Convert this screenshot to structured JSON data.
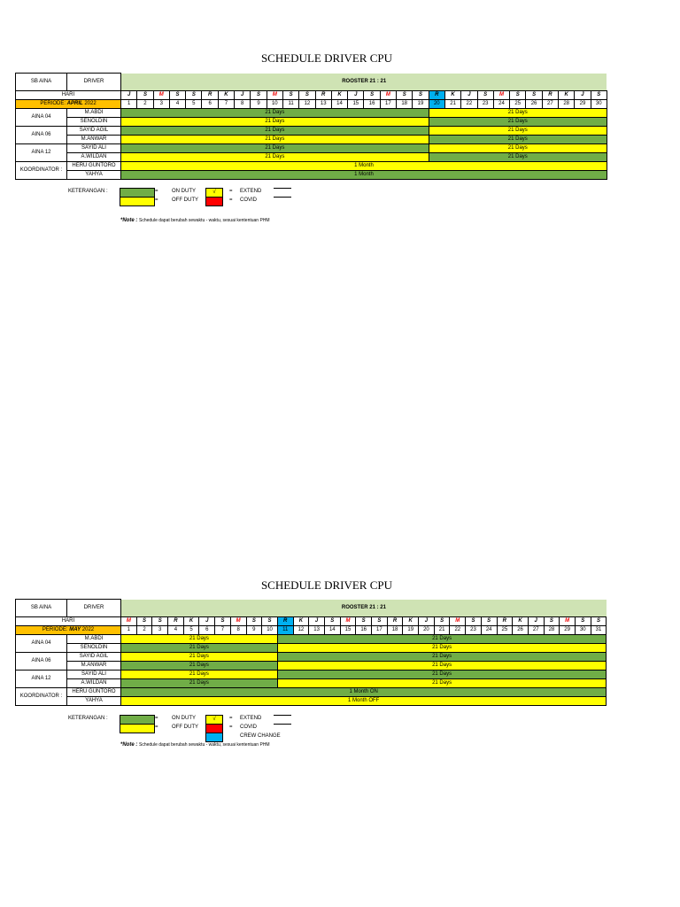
{
  "sheets": [
    {
      "title": "SCHEDULE DRIVER CPU",
      "header": {
        "sb": "SB AINA",
        "driver": "DRIVER",
        "rooster": "ROOSTER 21 : 21",
        "hari": "HARI"
      },
      "periode": {
        "prefix": "PERIODE: ",
        "month": "APRIL",
        "year": " 2022"
      },
      "days": [
        "J",
        "S",
        "M",
        "S",
        "S",
        "R",
        "K",
        "J",
        "S",
        "M",
        "S",
        "S",
        "R",
        "K",
        "J",
        "S",
        "M",
        "S",
        "S",
        "R",
        "K",
        "J",
        "S",
        "M",
        "S",
        "S",
        "R",
        "K",
        "J",
        "S"
      ],
      "crew_change_date": 20,
      "dates": [
        "1",
        "2",
        "3",
        "4",
        "5",
        "6",
        "7",
        "8",
        "9",
        "10",
        "11",
        "12",
        "13",
        "14",
        "15",
        "16",
        "17",
        "18",
        "19",
        "20",
        "21",
        "22",
        "23",
        "24",
        "25",
        "26",
        "27",
        "28",
        "29",
        "30"
      ],
      "groups": [
        {
          "label": "AINA 04",
          "rows": [
            {
              "name": "M.ABDI",
              "segments": [
                {
                  "span": 19,
                  "status": "on",
                  "text": "21 Days"
                },
                {
                  "span": 11,
                  "status": "off",
                  "text": "21 Days"
                }
              ]
            },
            {
              "name": "SENOLDIN",
              "segments": [
                {
                  "span": 19,
                  "status": "off",
                  "text": "21 Days"
                },
                {
                  "span": 11,
                  "status": "on",
                  "text": "21 Days"
                }
              ]
            }
          ]
        },
        {
          "label": "AINA 06",
          "rows": [
            {
              "name": "SAYID AGIL",
              "segments": [
                {
                  "span": 19,
                  "status": "on",
                  "text": "21 Days"
                },
                {
                  "span": 11,
                  "status": "off",
                  "text": "21 Days"
                }
              ]
            },
            {
              "name": "M.ANWAR",
              "segments": [
                {
                  "span": 19,
                  "status": "off",
                  "text": "21 Days"
                },
                {
                  "span": 11,
                  "status": "on",
                  "text": "21 Days"
                }
              ]
            }
          ]
        },
        {
          "label": "AINA 12",
          "rows": [
            {
              "name": "SAYID ALI",
              "segments": [
                {
                  "span": 19,
                  "status": "on",
                  "text": "21 Days"
                },
                {
                  "span": 11,
                  "status": "off",
                  "text": "21 Days"
                }
              ]
            },
            {
              "name": "A.WILDAN",
              "segments": [
                {
                  "span": 19,
                  "status": "off",
                  "text": "21 Days"
                },
                {
                  "span": 11,
                  "status": "on",
                  "text": "21 Days"
                }
              ]
            }
          ]
        },
        {
          "label": "KOORDINATOR :",
          "rows": [
            {
              "name": "HERU GUNTORO",
              "segments": [
                {
                  "span": 30,
                  "status": "off",
                  "text": "1 Month"
                }
              ]
            },
            {
              "name": "YAHYA",
              "segments": [
                {
                  "span": 30,
                  "status": "on",
                  "text": "1 Month"
                }
              ]
            }
          ]
        }
      ],
      "legend": {
        "keterangan": "KETERANGAN :",
        "eq": "=",
        "on_duty": "ON DUTY",
        "off_duty": "OFF DUTY",
        "check": "√",
        "extend": "EXTEND",
        "covid": "COVID",
        "crew_change": ""
      },
      "note": {
        "label": "*Note : ",
        "text": "Schedule dapat berubah sewaktu - waktu, sesuai kententuan PHM"
      }
    },
    {
      "title": "SCHEDULE DRIVER CPU",
      "header": {
        "sb": "SB AINA",
        "driver": "DRIVER",
        "rooster": "ROOSTER 21 : 21",
        "hari": "HARI"
      },
      "periode": {
        "prefix": "PERIODE: ",
        "month": "MAY",
        "year": " 2022"
      },
      "days": [
        "M",
        "S",
        "S",
        "R",
        "K",
        "J",
        "S",
        "M",
        "S",
        "S",
        "R",
        "K",
        "J",
        "S",
        "M",
        "S",
        "S",
        "R",
        "K",
        "J",
        "S",
        "M",
        "S",
        "S",
        "R",
        "K",
        "J",
        "S",
        "M",
        "S",
        "S"
      ],
      "crew_change_date": 11,
      "dates": [
        "1",
        "2",
        "3",
        "4",
        "5",
        "6",
        "7",
        "8",
        "9",
        "10",
        "11",
        "12",
        "13",
        "14",
        "15",
        "16",
        "17",
        "18",
        "19",
        "20",
        "21",
        "22",
        "23",
        "24",
        "25",
        "26",
        "27",
        "28",
        "29",
        "30",
        "31"
      ],
      "groups": [
        {
          "label": "AINA 04",
          "rows": [
            {
              "name": "M.ABDI",
              "segments": [
                {
                  "span": 10,
                  "status": "off",
                  "text": "21 Days"
                },
                {
                  "span": 21,
                  "status": "on",
                  "text": "21 Days"
                }
              ]
            },
            {
              "name": "SENOLDIN",
              "segments": [
                {
                  "span": 10,
                  "status": "on",
                  "text": "21 Days"
                },
                {
                  "span": 21,
                  "status": "off",
                  "text": "21 Days"
                }
              ]
            }
          ]
        },
        {
          "label": "AINA 06",
          "rows": [
            {
              "name": "SAYID AGIL",
              "segments": [
                {
                  "span": 10,
                  "status": "off",
                  "text": "21 Days"
                },
                {
                  "span": 21,
                  "status": "on",
                  "text": "21 Days"
                }
              ]
            },
            {
              "name": "M.ANWAR",
              "segments": [
                {
                  "span": 10,
                  "status": "on",
                  "text": "21 Days"
                },
                {
                  "span": 21,
                  "status": "off",
                  "text": "21 Days"
                }
              ]
            }
          ]
        },
        {
          "label": "AINA 12",
          "rows": [
            {
              "name": "SAYID ALI",
              "segments": [
                {
                  "span": 10,
                  "status": "off",
                  "text": "21 Days"
                },
                {
                  "span": 21,
                  "status": "on",
                  "text": "21 Days"
                }
              ]
            },
            {
              "name": "A.WILDAN",
              "segments": [
                {
                  "span": 10,
                  "status": "on",
                  "text": "21 Days"
                },
                {
                  "span": 21,
                  "status": "off",
                  "text": "21 Days"
                }
              ]
            }
          ]
        },
        {
          "label": "KOORDINATOR :",
          "rows": [
            {
              "name": "HERU GUNTORO",
              "segments": [
                {
                  "span": 31,
                  "status": "on",
                  "text": "1 Month ON"
                }
              ]
            },
            {
              "name": "YAHYA",
              "segments": [
                {
                  "span": 31,
                  "status": "off",
                  "text": "1 Month OFF"
                }
              ]
            }
          ]
        }
      ],
      "legend": {
        "keterangan": "KETERANGAN :",
        "eq": "=",
        "on_duty": "ON DUTY",
        "off_duty": "OFF DUTY",
        "check": "√",
        "extend": "EXTEND",
        "covid": "COVID",
        "crew_change": "CREW CHANGE"
      },
      "note": {
        "label": "*Note : ",
        "text": "Schedule dapat berubah sewaktu - waktu, sesuai kententuan PHM"
      }
    }
  ],
  "colors": {
    "on_duty": "#70ad47",
    "off_duty": "#ffff00",
    "extend": "#ffff00",
    "covid": "#ff0000",
    "crew_change": "#00b0f0",
    "periode": "#ffc000",
    "rooster": "#cfe3b4"
  }
}
